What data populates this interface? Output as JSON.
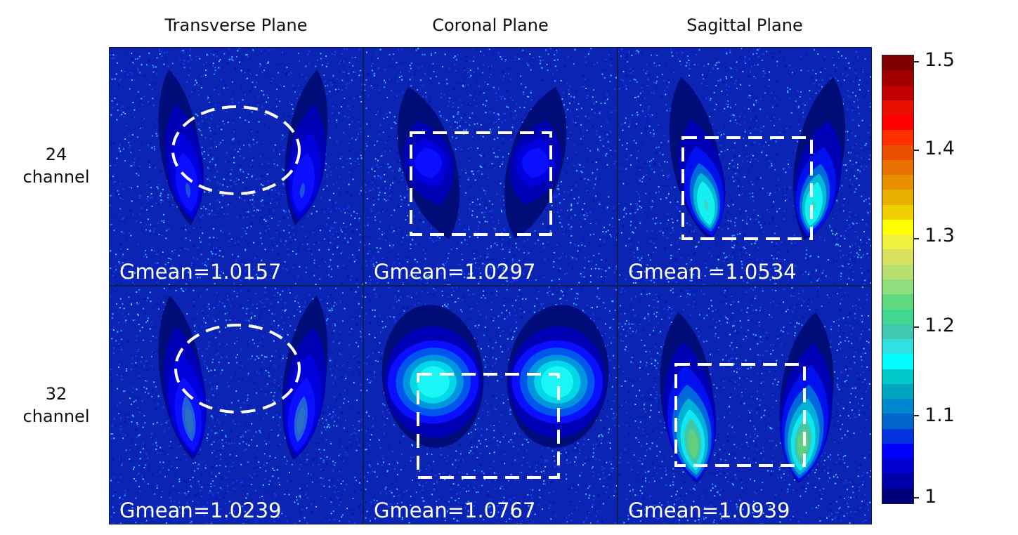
{
  "columns": [
    "Transverse Plane",
    "Coronal Plane",
    "Sagittal Plane"
  ],
  "rows": [
    {
      "label_line1": "24",
      "label_line2": "channel"
    },
    {
      "label_line1": "32",
      "label_line2": "channel"
    }
  ],
  "panels": [
    {
      "gmean": "Gmean=1.0157",
      "roi": "ellipse"
    },
    {
      "gmean": "Gmean=1.0297",
      "roi": "rectangle"
    },
    {
      "gmean": "Gmean =1.0534",
      "roi": "rectangle"
    },
    {
      "gmean": "Gmean=1.0239",
      "roi": "ellipse"
    },
    {
      "gmean": "Gmean=1.0767",
      "roi": "rectangle"
    },
    {
      "gmean": "Gmean=1.0939",
      "roi": "rectangle"
    }
  ],
  "colorbar": {
    "min": 1.0,
    "max": 1.5,
    "tick_labels": [
      "1.5",
      "1.4",
      "1.3",
      "1.2",
      "1.1",
      "1"
    ],
    "colors_bottom_to_top": [
      "#00007a",
      "#0000a8",
      "#0000d0",
      "#0000ff",
      "#0033dd",
      "#0066cc",
      "#0088cc",
      "#00a6c0",
      "#00c8c8",
      "#00ffff",
      "#33e0e0",
      "#40c8b0",
      "#40d890",
      "#60d880",
      "#90e080",
      "#b8e070",
      "#d8e060",
      "#f0f040",
      "#ffff00",
      "#f0d000",
      "#e8b000",
      "#e89000",
      "#e87000",
      "#e85000",
      "#ff3000",
      "#ff0000",
      "#e81000",
      "#c00000",
      "#a00000",
      "#800000"
    ]
  }
}
